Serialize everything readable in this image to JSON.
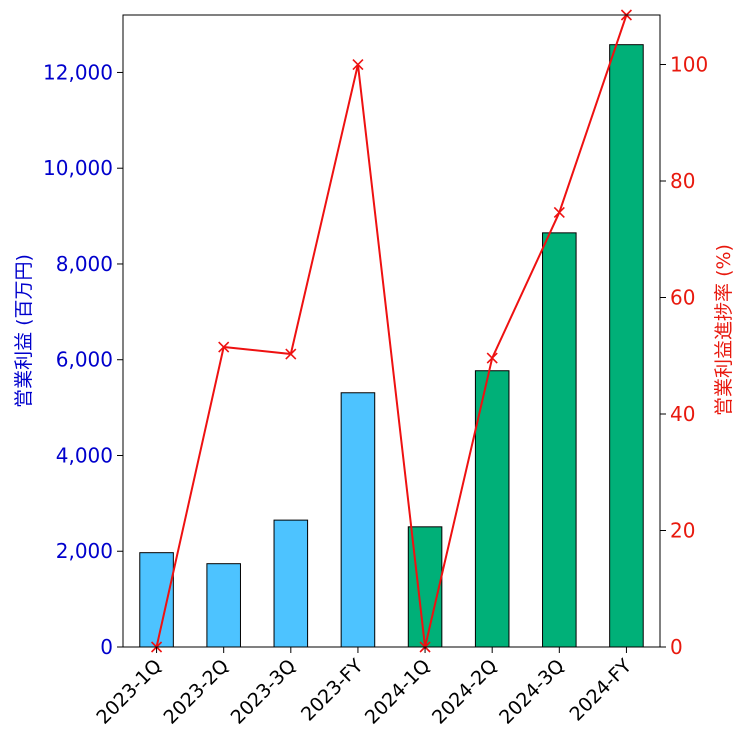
{
  "chart_data": {
    "type": "bar",
    "categories": [
      "2023-1Q",
      "2023-2Q",
      "2023-3Q",
      "2023-FY",
      "2024-1Q",
      "2024-2Q",
      "2024-3Q",
      "2024-FY"
    ],
    "series": [
      {
        "type": "bar",
        "axis": "left",
        "values": [
          1970,
          1740,
          2650,
          5310,
          2510,
          5770,
          8650,
          12580
        ],
        "colors": [
          "#4dc3ff",
          "#4dc3ff",
          "#4dc3ff",
          "#4dc3ff",
          "#00b078",
          "#00b078",
          "#00b078",
          "#00b078"
        ]
      },
      {
        "type": "line",
        "axis": "right",
        "marker": "x",
        "color": "#ee1111",
        "values": [
          0,
          51.5,
          50.3,
          100,
          0,
          49.6,
          74.6,
          108.5
        ]
      }
    ],
    "ylabel_left": "営業利益 (百万円)",
    "ylabel_right": "営業利益進捗率 (%)",
    "ylim_left": [
      0,
      13200
    ],
    "ylim_right": [
      0,
      108.5
    ],
    "yticks_left": [
      "0",
      "2,000",
      "4,000",
      "6,000",
      "8,000",
      "10,000",
      "12,000"
    ],
    "yticks_left_values": [
      0,
      2000,
      4000,
      6000,
      8000,
      10000,
      12000
    ],
    "yticks_right": [
      "0",
      "20",
      "40",
      "60",
      "80",
      "100"
    ],
    "yticks_right_values": [
      0,
      20,
      40,
      60,
      80,
      100
    ],
    "grid": false,
    "left_axis_color": "#0000cc",
    "right_axis_color": "#e8190e"
  }
}
